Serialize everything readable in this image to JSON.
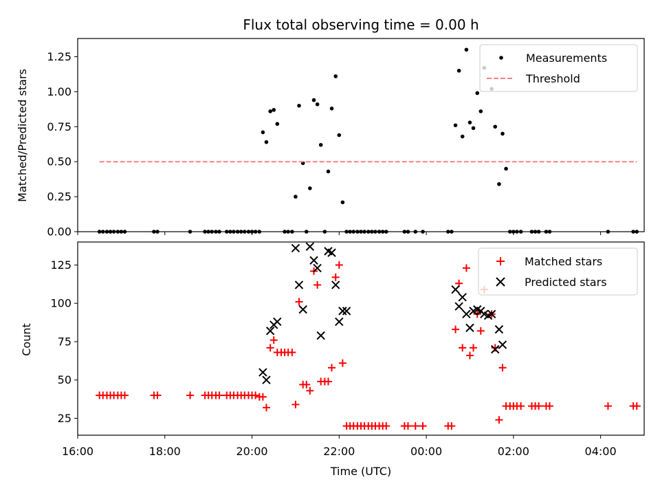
{
  "chart_data": [
    {
      "type": "scatter",
      "title": "Flux total observing time = 0.00 h",
      "xlabel": "",
      "ylabel": "Matched/Predicted stars",
      "xlim": [
        16.0,
        29.0
      ],
      "ylim": [
        0.0,
        1.38
      ],
      "yticks": [
        0.0,
        0.25,
        0.5,
        0.75,
        1.0,
        1.25
      ],
      "ytick_labels": [
        "0.00",
        "0.25",
        "0.50",
        "0.75",
        "1.00",
        "1.25"
      ],
      "legend": "top-right",
      "series": [
        {
          "name": "Measurements",
          "marker": "dot",
          "color": "#000000",
          "x": [
            16.5,
            16.58,
            16.67,
            16.75,
            16.83,
            16.92,
            17.0,
            17.08,
            17.75,
            17.83,
            18.58,
            18.92,
            19.0,
            19.08,
            19.17,
            19.25,
            19.42,
            19.5,
            19.58,
            19.67,
            19.75,
            19.83,
            19.92,
            20.0,
            20.08,
            20.17,
            20.25,
            20.33,
            20.42,
            20.5,
            20.58,
            20.75,
            20.83,
            20.92,
            21.0,
            21.08,
            21.17,
            21.25,
            21.33,
            21.42,
            21.5,
            21.58,
            21.67,
            21.75,
            21.83,
            21.92,
            22.0,
            22.08,
            22.17,
            22.25,
            22.33,
            22.42,
            22.5,
            22.58,
            22.67,
            22.75,
            22.83,
            22.92,
            23.0,
            23.08,
            23.5,
            23.58,
            23.75,
            23.92,
            24.5,
            24.58,
            24.67,
            24.75,
            24.83,
            24.92,
            25.0,
            25.08,
            25.17,
            25.25,
            25.33,
            25.5,
            25.58,
            25.67,
            25.75,
            25.83,
            25.92,
            26.0,
            26.08,
            26.17,
            26.42,
            26.5,
            26.58,
            26.75,
            26.83,
            28.17,
            28.75,
            28.83
          ],
          "y": [
            0.0,
            0.0,
            0.0,
            0.0,
            0.0,
            0.0,
            0.0,
            0.0,
            0.0,
            0.0,
            0.0,
            0.0,
            0.0,
            0.0,
            0.0,
            0.0,
            0.0,
            0.0,
            0.0,
            0.0,
            0.0,
            0.0,
            0.0,
            0.0,
            0.0,
            0.0,
            0.71,
            0.64,
            0.86,
            0.87,
            0.77,
            0.0,
            0.0,
            0.0,
            0.25,
            0.9,
            0.49,
            0.0,
            0.31,
            0.94,
            0.91,
            0.62,
            0.0,
            0.43,
            0.88,
            1.11,
            0.69,
            0.21,
            0.0,
            0.0,
            0.0,
            0.0,
            0.0,
            0.0,
            0.0,
            0.0,
            0.0,
            0.0,
            0.0,
            0.0,
            0.0,
            0.0,
            0.0,
            0.0,
            0.0,
            0.0,
            0.76,
            1.15,
            0.68,
            1.3,
            0.78,
            0.74,
            0.99,
            0.86,
            1.17,
            1.02,
            0.75,
            0.34,
            0.7,
            0.45,
            0.0,
            0.0,
            0.0,
            0.0,
            0.0,
            0.0,
            0.0,
            0.0,
            0.0,
            0.0,
            0.0,
            0.0
          ]
        },
        {
          "name": "Threshold",
          "marker": "dashed-line",
          "color": "#ff7f7f",
          "x": [
            16.5,
            28.83
          ],
          "y": [
            0.5,
            0.5
          ]
        }
      ]
    },
    {
      "type": "scatter",
      "title": "",
      "xlabel": "Time (UTC)",
      "ylabel": "Count",
      "xlim": [
        16.0,
        29.0
      ],
      "ylim": [
        14.0,
        140.0
      ],
      "yticks": [
        25,
        50,
        75,
        100,
        125
      ],
      "ytick_labels": [
        "25",
        "50",
        "75",
        "100",
        "125"
      ],
      "xticks": [
        16,
        18,
        20,
        22,
        24,
        26,
        28
      ],
      "xtick_labels": [
        "16:00",
        "18:00",
        "20:00",
        "22:00",
        "00:00",
        "02:00",
        "04:00"
      ],
      "legend": "top-right",
      "series": [
        {
          "name": "Matched stars",
          "marker": "plus",
          "color": "#ff0000",
          "x": [
            16.5,
            16.58,
            16.67,
            16.75,
            16.83,
            16.92,
            17.0,
            17.08,
            17.75,
            17.83,
            18.58,
            18.92,
            19.0,
            19.08,
            19.17,
            19.25,
            19.42,
            19.5,
            19.58,
            19.67,
            19.75,
            19.83,
            19.92,
            20.0,
            20.08,
            20.17,
            20.25,
            20.33,
            20.42,
            20.5,
            20.58,
            20.67,
            20.75,
            20.83,
            20.92,
            21.0,
            21.08,
            21.17,
            21.25,
            21.33,
            21.42,
            21.5,
            21.58,
            21.67,
            21.75,
            21.83,
            21.92,
            22.0,
            22.08,
            22.17,
            22.25,
            22.33,
            22.42,
            22.5,
            22.58,
            22.67,
            22.75,
            22.83,
            22.92,
            23.0,
            23.08,
            23.5,
            23.58,
            23.75,
            23.92,
            24.5,
            24.58,
            24.67,
            24.75,
            24.83,
            24.92,
            25.0,
            25.08,
            25.17,
            25.25,
            25.33,
            25.5,
            25.58,
            25.67,
            25.75,
            25.83,
            25.92,
            26.0,
            26.08,
            26.17,
            26.42,
            26.5,
            26.58,
            26.75,
            26.83,
            28.17,
            28.75,
            28.83
          ],
          "y": [
            40,
            40,
            40,
            40,
            40,
            40,
            40,
            40,
            40,
            40,
            40,
            40,
            40,
            40,
            40,
            40,
            40,
            40,
            40,
            40,
            40,
            40,
            40,
            40,
            40,
            39,
            39,
            32,
            71,
            76,
            68,
            68,
            68,
            68,
            68,
            34,
            101,
            47,
            47,
            43,
            121,
            112,
            49,
            49,
            49,
            58,
            117,
            125,
            61,
            20,
            20,
            20,
            20,
            20,
            20,
            20,
            20,
            20,
            20,
            20,
            20,
            20,
            20,
            20,
            20,
            20,
            20,
            83,
            113,
            71,
            123,
            66,
            71,
            93,
            82,
            109,
            93,
            71,
            24,
            58,
            33,
            33,
            33,
            33,
            33,
            33,
            33,
            33,
            33,
            33,
            33,
            33,
            33
          ]
        },
        {
          "name": "Predicted stars",
          "marker": "x",
          "color": "#000000",
          "x": [
            20.25,
            20.33,
            20.42,
            20.5,
            20.58,
            21.0,
            21.08,
            21.17,
            21.33,
            21.42,
            21.5,
            21.58,
            21.75,
            21.83,
            21.92,
            22.0,
            22.08,
            22.17,
            24.67,
            24.75,
            24.83,
            24.92,
            25.0,
            25.08,
            25.17,
            25.25,
            25.33,
            25.42,
            25.5,
            25.58,
            25.67,
            25.75
          ],
          "y": [
            55,
            50,
            82,
            86,
            88,
            136,
            112,
            96,
            137,
            128,
            123,
            79,
            134,
            133,
            112,
            88,
            95,
            95,
            109,
            98,
            104,
            93,
            84,
            95,
            96,
            95,
            93,
            92,
            93,
            70,
            83,
            73
          ]
        }
      ]
    }
  ]
}
